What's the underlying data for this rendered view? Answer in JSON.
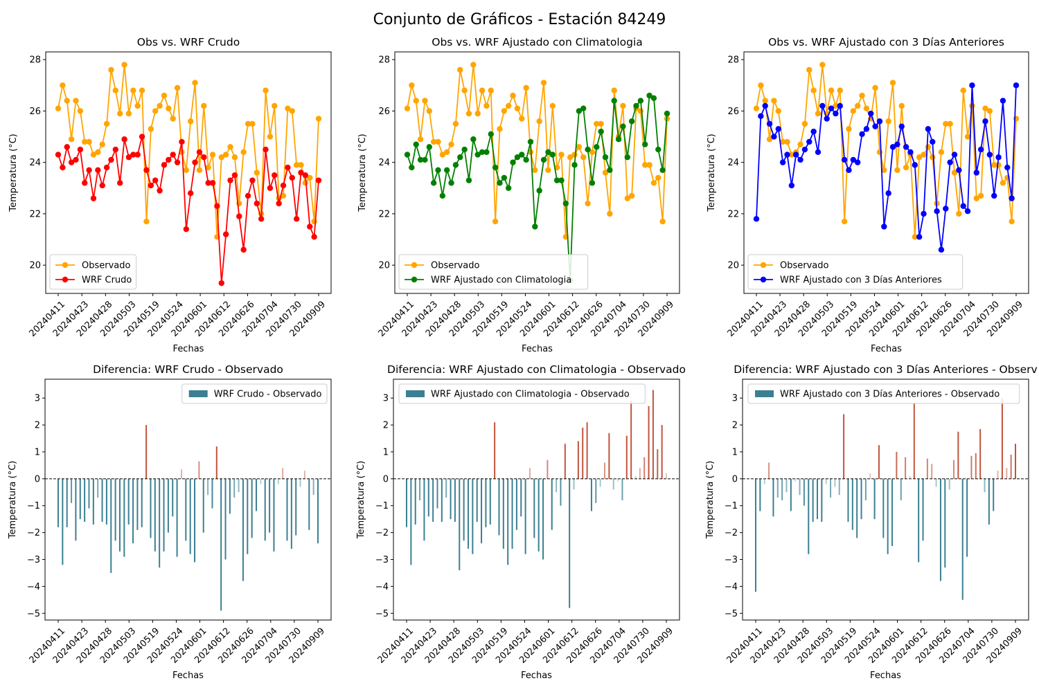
{
  "suptitle": "Conjunto de Gráficos - Estación 84249",
  "colors": {
    "observado": "#ffa500",
    "wrf_crudo": "#ff0000",
    "wrf_clim": "#008000",
    "wrf_3dias": "#0000ff",
    "bar_negative": "#3b7f92",
    "bar_positive": "#c0543b",
    "bar_near_zero": "#c9dde2"
  },
  "chart_data": [
    {
      "type": "line",
      "title": "Obs vs. WRF Crudo",
      "xlabel": "Fechas",
      "ylabel": "Temperatura (°C)",
      "ylim": [
        18.9,
        28.3
      ],
      "yticks": [
        20,
        22,
        24,
        26,
        28
      ],
      "xtick_labels": [
        "20240411",
        "20240423",
        "20240428",
        "20240503",
        "20240519",
        "20240524",
        "20240601",
        "20240612",
        "20240626",
        "20240704",
        "20240730",
        "20240909"
      ],
      "legend_position": "lower left",
      "grid": false,
      "observado": [
        26.1,
        27.0,
        26.4,
        24.9,
        26.4,
        26.0,
        24.8,
        24.8,
        24.3,
        24.4,
        24.7,
        25.5,
        27.6,
        26.8,
        25.9,
        27.8,
        25.9,
        26.8,
        26.2,
        26.8,
        21.7,
        25.3,
        26.0,
        26.2,
        26.6,
        26.1,
        25.7,
        26.9,
        24.4,
        23.7,
        25.6,
        27.1,
        23.7,
        26.2,
        23.8,
        24.3,
        21.1,
        24.2,
        24.3,
        24.6,
        24.2,
        22.4,
        24.4,
        25.5,
        25.5,
        23.6,
        22.0,
        26.8,
        25.0,
        26.2,
        22.6,
        22.7,
        26.1,
        26.0,
        23.9,
        23.9,
        23.2,
        23.4,
        21.7,
        25.7
      ],
      "series": [
        {
          "name": "Observado",
          "color_key": "observado"
        },
        {
          "name": "WRF Crudo",
          "color_key": "wrf_crudo",
          "values": [
            24.3,
            23.8,
            24.6,
            24.0,
            24.1,
            24.5,
            23.2,
            23.7,
            22.6,
            23.7,
            23.1,
            23.8,
            24.1,
            24.5,
            23.2,
            24.9,
            24.2,
            24.3,
            24.3,
            25.0,
            23.7,
            23.1,
            23.3,
            22.9,
            23.9,
            24.1,
            24.3,
            24.0,
            24.8,
            21.4,
            22.8,
            24.0,
            24.4,
            24.2,
            23.2,
            23.2,
            22.3,
            19.3,
            21.2,
            23.3,
            23.5,
            21.9,
            20.6,
            22.7,
            23.3,
            22.4,
            21.8,
            24.5,
            23.0,
            23.5,
            22.4,
            23.1,
            23.8,
            23.4,
            21.8,
            23.6,
            23.5,
            21.5,
            21.1,
            23.3
          ]
        }
      ]
    },
    {
      "type": "line",
      "title": "Obs vs. WRF Ajustado con Climatologia",
      "xlabel": "Fechas",
      "ylabel": "Temperatura (°C)",
      "ylim": [
        18.9,
        28.3
      ],
      "yticks": [
        20,
        22,
        24,
        26,
        28
      ],
      "xtick_labels": [
        "20240411",
        "20240423",
        "20240428",
        "20240503",
        "20240519",
        "20240524",
        "20240601",
        "20240612",
        "20240626",
        "20240704",
        "20240730",
        "20240909"
      ],
      "legend_position": "lower left",
      "grid": false,
      "series": [
        {
          "name": "Observado",
          "color_key": "observado"
        },
        {
          "name": "WRF Ajustado con Climatologia",
          "color_key": "wrf_clim",
          "values": [
            24.3,
            23.8,
            24.7,
            24.1,
            24.1,
            24.6,
            23.2,
            23.7,
            22.7,
            23.7,
            23.2,
            23.9,
            24.2,
            24.5,
            23.3,
            24.9,
            24.3,
            24.4,
            24.4,
            25.1,
            23.8,
            23.2,
            23.4,
            23.0,
            24.0,
            24.2,
            24.3,
            24.1,
            24.8,
            21.5,
            22.9,
            24.1,
            24.4,
            24.3,
            23.3,
            23.3,
            22.4,
            19.4,
            23.9,
            26.0,
            26.1,
            24.5,
            23.2,
            24.6,
            25.2,
            24.2,
            23.7,
            26.4,
            24.9,
            25.4,
            24.2,
            25.6,
            26.2,
            26.4,
            24.7,
            26.6,
            26.5,
            24.5,
            23.7,
            25.9
          ]
        }
      ]
    },
    {
      "type": "line",
      "title": "Obs vs. WRF Ajustado con 3 Días Anteriores",
      "xlabel": "Fechas",
      "ylabel": "Temperatura (°C)",
      "ylim": [
        18.9,
        28.3
      ],
      "yticks": [
        20,
        22,
        24,
        26,
        28
      ],
      "xtick_labels": [
        "20240411",
        "20240423",
        "20240428",
        "20240503",
        "20240519",
        "20240524",
        "20240601",
        "20240612",
        "20240626",
        "20240704",
        "20240730",
        "20240909"
      ],
      "legend_position": "lower left",
      "grid": false,
      "series": [
        {
          "name": "Observado",
          "color_key": "observado"
        },
        {
          "name": "WRF Ajustado con 3 Días Anteriores",
          "color_key": "wrf_3dias",
          "values": [
            21.8,
            25.8,
            26.2,
            25.5,
            25.0,
            25.3,
            24.0,
            24.3,
            23.1,
            24.3,
            24.1,
            24.5,
            24.8,
            25.2,
            24.4,
            26.2,
            25.7,
            26.1,
            25.9,
            26.2,
            24.1,
            23.7,
            24.1,
            24.0,
            25.1,
            25.3,
            25.9,
            25.4,
            25.6,
            21.5,
            22.8,
            24.6,
            24.7,
            25.4,
            24.6,
            24.4,
            23.9,
            21.1,
            22.0,
            25.3,
            24.8,
            22.1,
            20.6,
            22.2,
            24.0,
            24.3,
            23.7,
            22.3,
            22.1,
            27.0,
            23.6,
            24.5,
            25.6,
            24.3,
            22.7,
            24.2,
            26.4,
            23.8,
            22.6,
            27.0
          ]
        }
      ]
    },
    {
      "type": "bar",
      "title": "Diferencia: WRF Crudo - Observado",
      "xlabel": "Fechas",
      "ylabel": "Temperatura (°C)",
      "ylim": [
        -5.25,
        3.7
      ],
      "yticks": [
        -5,
        -4,
        -3,
        -2,
        -1,
        0,
        1,
        2,
        3
      ],
      "xtick_labels": [
        "20240411",
        "20240423",
        "20240428",
        "20240503",
        "20240519",
        "20240524",
        "20240601",
        "20240612",
        "20240626",
        "20240704",
        "20240730",
        "20240909"
      ],
      "legend_position": "upper right",
      "series_name": "WRF Crudo - Observado",
      "values": [
        -1.8,
        -3.2,
        -1.8,
        -0.9,
        -2.3,
        -1.5,
        -1.6,
        -1.1,
        -1.7,
        -0.7,
        -1.6,
        -1.7,
        -3.5,
        -2.3,
        -2.7,
        -2.9,
        -1.7,
        -2.4,
        -1.9,
        -1.8,
        2.0,
        -2.2,
        -2.7,
        -3.3,
        -2.7,
        -2.0,
        -1.4,
        -2.9,
        0.35,
        -2.3,
        -2.8,
        -3.1,
        0.65,
        -2.0,
        -0.6,
        -1.1,
        1.2,
        -4.9,
        -3.0,
        -1.3,
        -0.7,
        -0.5,
        -3.8,
        -2.8,
        -2.2,
        -1.2,
        -0.2,
        -2.3,
        -2.0,
        -2.7,
        -0.2,
        0.4,
        -2.3,
        -2.6,
        -2.1,
        -0.3,
        0.3,
        -1.9,
        -0.6,
        -2.4
      ]
    },
    {
      "type": "bar",
      "title": "Diferencia: WRF Ajustado con Climatologia - Observado",
      "xlabel": "Fechas",
      "ylabel": "Temperatura (°C)",
      "ylim": [
        -5.25,
        3.7
      ],
      "yticks": [
        -5,
        -4,
        -3,
        -2,
        -1,
        0,
        1,
        2,
        3
      ],
      "xtick_labels": [
        "20240411",
        "20240423",
        "20240428",
        "20240503",
        "20240519",
        "20240524",
        "20240601",
        "20240612",
        "20240626",
        "20240704",
        "20240730",
        "20240909"
      ],
      "legend_position": "upper left",
      "series_name": "WRF Ajustado con Climatologia - Observado",
      "values": [
        -1.8,
        -3.2,
        -1.7,
        -0.8,
        -2.3,
        -1.4,
        -1.6,
        -1.1,
        -1.6,
        -0.7,
        -1.5,
        -1.6,
        -3.4,
        -2.3,
        -2.6,
        -2.8,
        -1.6,
        -2.4,
        -1.8,
        -1.7,
        2.1,
        -2.1,
        -2.6,
        -3.2,
        -2.6,
        -1.9,
        -1.4,
        -2.8,
        0.4,
        -2.2,
        -2.7,
        -3.0,
        0.7,
        -1.9,
        -0.5,
        -1.0,
        1.3,
        -4.8,
        -0.4,
        1.4,
        1.9,
        2.1,
        -1.2,
        -0.9,
        -0.3,
        0.6,
        1.7,
        -0.4,
        -0.1,
        -0.8,
        1.6,
        2.9,
        0.1,
        0.4,
        0.8,
        2.7,
        3.3,
        1.1,
        2.0,
        0.2
      ]
    },
    {
      "type": "bar",
      "title": "Diferencia: WRF Ajustado con 3 Días Anteriores - Observ",
      "xlabel": "Fechas",
      "ylabel": "Temperatura (°C)",
      "ylim": [
        -5.25,
        3.7
      ],
      "yticks": [
        -5,
        -4,
        -3,
        -2,
        -1,
        0,
        1,
        2,
        3
      ],
      "xtick_labels": [
        "20240411",
        "20240423",
        "20240428",
        "20240503",
        "20240519",
        "20240524",
        "20240601",
        "20240612",
        "20240626",
        "20240704",
        "20240730",
        "20240909"
      ],
      "legend_position": "upper left",
      "series_name": "WRF Ajustado con 3 Días Anteriores - Observado",
      "values": [
        -4.2,
        -1.2,
        -0.2,
        0.6,
        -1.4,
        -0.7,
        -0.8,
        -0.5,
        -1.2,
        -0.1,
        -0.6,
        -1.0,
        -2.8,
        -1.6,
        -1.5,
        -1.6,
        -0.2,
        -0.7,
        -0.3,
        -0.6,
        2.4,
        -1.6,
        -1.9,
        -2.2,
        -1.5,
        -0.8,
        0.2,
        -1.5,
        1.25,
        -2.2,
        -2.8,
        -2.5,
        1.0,
        -0.8,
        0.8,
        0.1,
        2.8,
        -3.1,
        -2.3,
        0.75,
        0.55,
        -0.3,
        -3.8,
        -3.3,
        -0.4,
        0.7,
        1.75,
        -4.5,
        -2.9,
        0.85,
        0.95,
        1.85,
        -0.5,
        -1.7,
        -1.2,
        0.3,
        3.0,
        0.4,
        0.9,
        1.3
      ]
    }
  ]
}
